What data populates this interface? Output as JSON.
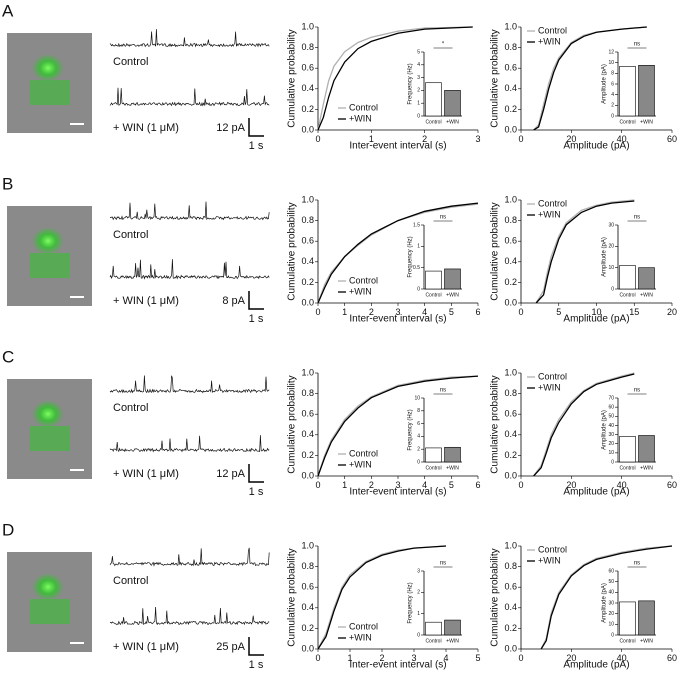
{
  "panels": [
    {
      "label": "A",
      "trace_labels": [
        "Control",
        "+ WIN (1 μM)"
      ],
      "scale_y": "12 pA",
      "scale_x": "1 s"
    },
    {
      "label": "B",
      "trace_labels": [
        "Control",
        "+ WIN (1 μM)"
      ],
      "scale_y": "8 pA",
      "scale_x": "1 s"
    },
    {
      "label": "C",
      "trace_labels": [
        "Control",
        "+ WIN (1 μM)"
      ],
      "scale_y": "12 pA",
      "scale_x": "1 s"
    },
    {
      "label": "D",
      "trace_labels": [
        "Control",
        "+ WIN (1 μM)"
      ],
      "scale_y": "25 pA",
      "scale_x": "1 s"
    }
  ],
  "chart_data": [
    {
      "type": "line",
      "ylabel": "Cumulative probability",
      "xlabel": "Inter-event  interval (s)",
      "legend": "lower-left",
      "xlim": [
        0,
        3
      ],
      "xticks": [
        0,
        1,
        2,
        3
      ],
      "ylim": [
        0,
        1
      ],
      "yticks": [
        {
          "value": 0,
          "label": "0.0"
        },
        0.2,
        0.4,
        0.6,
        0.8,
        {
          "value": 1,
          "label": "1.0"
        }
      ],
      "x": [
        0,
        0.1,
        0.2,
        0.3,
        0.5,
        0.75,
        1,
        1.5,
        2,
        2.9
      ],
      "series": [
        {
          "name": "Control",
          "color": "#b0b0b0",
          "values": [
            0,
            0.25,
            0.48,
            0.62,
            0.76,
            0.85,
            0.9,
            0.96,
            0.99,
            1
          ]
        },
        {
          "name": "+WIN",
          "color": "#000000",
          "values": [
            0,
            0.12,
            0.32,
            0.48,
            0.66,
            0.79,
            0.86,
            0.94,
            0.98,
            1
          ]
        }
      ],
      "inset": {
        "type": "bar",
        "ylabel": "Frequency (Hz)",
        "categories": [
          "Control",
          "+WIN"
        ],
        "values": [
          2.6,
          2.0
        ],
        "colors": [
          "#ffffff",
          "#888888"
        ],
        "ylim": [
          0,
          5
        ],
        "yticks": [
          0,
          1,
          2,
          3,
          4,
          5
        ],
        "annotation": "*"
      }
    },
    {
      "type": "line",
      "ylabel": "Cumulative probability",
      "xlabel": "Amplitude  (pA)",
      "legend": "upper-left",
      "xlim": [
        0,
        60
      ],
      "xticks": [
        0,
        20,
        40,
        60
      ],
      "ylim": [
        0,
        1
      ],
      "yticks": [
        {
          "value": 0,
          "label": "0.0"
        },
        0.2,
        0.4,
        0.6,
        0.8,
        {
          "value": 1,
          "label": "1.0"
        }
      ],
      "x": [
        5,
        7,
        9,
        11,
        13,
        15,
        20,
        25,
        30,
        40,
        50
      ],
      "series": [
        {
          "name": "Control",
          "color": "#b0b0b0",
          "values": [
            0,
            0.05,
            0.25,
            0.45,
            0.6,
            0.7,
            0.85,
            0.92,
            0.95,
            0.98,
            1
          ]
        },
        {
          "name": "+WIN",
          "color": "#000000",
          "values": [
            0,
            0.03,
            0.2,
            0.4,
            0.56,
            0.68,
            0.84,
            0.91,
            0.95,
            0.98,
            1
          ]
        }
      ],
      "inset": {
        "type": "bar",
        "ylabel": "Amplitude (pA)",
        "categories": [
          "Control",
          "+WIN"
        ],
        "values": [
          9.3,
          9.5
        ],
        "colors": [
          "#ffffff",
          "#888888"
        ],
        "ylim": [
          0,
          12
        ],
        "yticks": [
          0,
          2,
          4,
          6,
          8,
          10,
          12
        ],
        "annotation": "ns"
      }
    },
    {
      "type": "line",
      "ylabel": "Cumulative probability",
      "xlabel": "Inter-event  interval (s)",
      "legend": "lower-left",
      "xlim": [
        0,
        6
      ],
      "xticks": [
        0,
        1,
        2,
        3,
        4,
        5,
        6
      ],
      "ylim": [
        0,
        1
      ],
      "yticks": [
        {
          "value": 0,
          "label": "0.0"
        },
        0.2,
        0.4,
        0.6,
        0.8,
        {
          "value": 1,
          "label": "1.0"
        }
      ],
      "x": [
        0,
        0.25,
        0.5,
        1,
        1.5,
        2,
        3,
        4,
        5,
        6
      ],
      "series": [
        {
          "name": "Control",
          "color": "#b0b0b0",
          "values": [
            0,
            0.18,
            0.3,
            0.45,
            0.56,
            0.66,
            0.8,
            0.88,
            0.93,
            0.96
          ]
        },
        {
          "name": "+WIN",
          "color": "#000000",
          "values": [
            0,
            0.15,
            0.28,
            0.45,
            0.57,
            0.67,
            0.8,
            0.89,
            0.94,
            0.97
          ]
        }
      ],
      "inset": {
        "type": "bar",
        "ylabel": "Frequency (Hz)",
        "categories": [
          "Control",
          "+WIN"
        ],
        "values": [
          0.42,
          0.47
        ],
        "colors": [
          "#ffffff",
          "#888888"
        ],
        "ylim": [
          0,
          1.5
        ],
        "yticks": [
          0,
          0.5,
          1,
          1.5
        ],
        "annotation": "ns"
      }
    },
    {
      "type": "line",
      "ylabel": "Cumulative probability",
      "xlabel": "Amplitude  (pA)",
      "legend": "upper-left",
      "xlim": [
        0,
        20
      ],
      "xticks": [
        0,
        5,
        10,
        15,
        20
      ],
      "ylim": [
        0,
        1
      ],
      "yticks": [
        {
          "value": 0,
          "label": "0.0"
        },
        0.2,
        0.4,
        0.6,
        0.8,
        {
          "value": 1,
          "label": "1.0"
        }
      ],
      "x": [
        2,
        3,
        3.5,
        4,
        5,
        6,
        8,
        10,
        12,
        15
      ],
      "series": [
        {
          "name": "Control",
          "color": "#b0b0b0",
          "values": [
            0,
            0.12,
            0.3,
            0.45,
            0.65,
            0.78,
            0.9,
            0.95,
            0.98,
            1
          ]
        },
        {
          "name": "+WIN",
          "color": "#000000",
          "values": [
            0,
            0.08,
            0.25,
            0.4,
            0.62,
            0.76,
            0.88,
            0.94,
            0.97,
            0.99
          ]
        }
      ],
      "inset": {
        "type": "bar",
        "ylabel": "Amplitude (pA)",
        "categories": [
          "Control",
          "+WIN"
        ],
        "values": [
          11,
          10
        ],
        "colors": [
          "#ffffff",
          "#888888"
        ],
        "ylim": [
          0,
          30
        ],
        "yticks": [
          0,
          10,
          20,
          30
        ],
        "annotation": "ns"
      }
    },
    {
      "type": "line",
      "ylabel": "Cumulative probability",
      "xlabel": "Inter-event interval (s)",
      "legend": "lower-left",
      "xlim": [
        0,
        6
      ],
      "xticks": [
        0,
        1,
        2,
        3,
        4,
        5,
        6
      ],
      "ylim": [
        0,
        1
      ],
      "yticks": [
        {
          "value": 0,
          "label": "0.0"
        },
        0.2,
        0.4,
        0.6,
        0.8,
        {
          "value": 1,
          "label": "1.0"
        }
      ],
      "x": [
        0,
        0.25,
        0.5,
        1,
        1.5,
        2,
        3,
        4,
        5,
        6
      ],
      "series": [
        {
          "name": "Control",
          "color": "#b0b0b0",
          "values": [
            0,
            0.2,
            0.35,
            0.55,
            0.68,
            0.77,
            0.88,
            0.93,
            0.96,
            0.97
          ]
        },
        {
          "name": "+WIN",
          "color": "#000000",
          "values": [
            0,
            0.18,
            0.33,
            0.53,
            0.66,
            0.76,
            0.87,
            0.92,
            0.95,
            0.97
          ]
        }
      ],
      "inset": {
        "type": "bar",
        "ylabel": "Frequency (Hz)",
        "categories": [
          "Control",
          "+WIN"
        ],
        "values": [
          2.2,
          2.3
        ],
        "colors": [
          "#ffffff",
          "#888888"
        ],
        "ylim": [
          0,
          10
        ],
        "yticks": [
          0,
          2,
          4,
          6,
          8,
          10
        ],
        "annotation": "ns"
      }
    },
    {
      "type": "line",
      "ylabel": "Cumulative probability",
      "xlabel": "Amplitude  (pA)",
      "legend": "upper-left",
      "xlim": [
        0,
        60
      ],
      "xticks": [
        0,
        20,
        40,
        60
      ],
      "ylim": [
        0,
        1
      ],
      "yticks": [
        {
          "value": 0,
          "label": "0.0"
        },
        0.2,
        0.4,
        0.6,
        0.8,
        {
          "value": 1,
          "label": "1.0"
        }
      ],
      "x": [
        5,
        8,
        10,
        12,
        15,
        20,
        25,
        30,
        40,
        45
      ],
      "series": [
        {
          "name": "Control",
          "color": "#b0b0b0",
          "values": [
            0,
            0.1,
            0.25,
            0.4,
            0.55,
            0.72,
            0.83,
            0.9,
            0.97,
            1
          ]
        },
        {
          "name": "+WIN",
          "color": "#000000",
          "values": [
            0,
            0.08,
            0.22,
            0.37,
            0.52,
            0.7,
            0.82,
            0.89,
            0.96,
            0.99
          ]
        }
      ],
      "inset": {
        "type": "bar",
        "ylabel": "Amplitude (pA)",
        "categories": [
          "Control",
          "+WIN"
        ],
        "values": [
          28,
          29
        ],
        "colors": [
          "#ffffff",
          "#888888"
        ],
        "ylim": [
          0,
          70
        ],
        "yticks": [
          0,
          10,
          20,
          30,
          40,
          50,
          60,
          70
        ],
        "annotation": "ns"
      }
    },
    {
      "type": "line",
      "ylabel": "Cumulative probability",
      "xlabel": "Inter-event  interval (s)",
      "legend": "lower-left",
      "xlim": [
        0,
        5
      ],
      "xticks": [
        0,
        1,
        2,
        3,
        4,
        5
      ],
      "ylim": [
        0,
        1
      ],
      "yticks": [
        {
          "value": 0,
          "label": "0.0"
        },
        0.2,
        0.4,
        0.6,
        0.8,
        {
          "value": 1,
          "label": "1.0"
        }
      ],
      "x": [
        0,
        0.25,
        0.5,
        0.75,
        1,
        1.5,
        2,
        2.5,
        3,
        4
      ],
      "series": [
        {
          "name": "Control",
          "color": "#b0b0b0",
          "values": [
            0,
            0.15,
            0.4,
            0.6,
            0.72,
            0.85,
            0.92,
            0.96,
            0.98,
            1
          ]
        },
        {
          "name": "+WIN",
          "color": "#000000",
          "values": [
            0,
            0.12,
            0.37,
            0.58,
            0.7,
            0.84,
            0.91,
            0.95,
            0.98,
            1
          ]
        }
      ],
      "inset": {
        "type": "bar",
        "ylabel": "Frequency (Hz)",
        "categories": [
          "Control",
          "+WIN"
        ],
        "values": [
          0.6,
          0.7
        ],
        "colors": [
          "#ffffff",
          "#888888"
        ],
        "ylim": [
          0,
          3
        ],
        "yticks": [
          0,
          1,
          2,
          3
        ],
        "annotation": "ns"
      }
    },
    {
      "type": "line",
      "ylabel": "Cumulative probability",
      "xlabel": "Amplitude  (pA)",
      "legend": "upper-left",
      "xlim": [
        0,
        60
      ],
      "xticks": [
        0,
        20,
        40,
        60
      ],
      "ylim": [
        0,
        1
      ],
      "yticks": [
        {
          "value": 0,
          "label": "0.0"
        },
        0.2,
        0.4,
        0.6,
        0.8,
        {
          "value": 1,
          "label": "1.0"
        }
      ],
      "x": [
        8,
        10,
        12,
        15,
        20,
        25,
        30,
        40,
        50,
        60
      ],
      "series": [
        {
          "name": "Control",
          "color": "#b0b0b0",
          "values": [
            0,
            0.1,
            0.35,
            0.55,
            0.72,
            0.82,
            0.88,
            0.94,
            0.98,
            1
          ]
        },
        {
          "name": "+WIN",
          "color": "#000000",
          "values": [
            0,
            0.08,
            0.32,
            0.53,
            0.71,
            0.81,
            0.87,
            0.93,
            0.97,
            1
          ]
        }
      ],
      "inset": {
        "type": "bar",
        "ylabel": "Amplitude (pA)",
        "categories": [
          "Control",
          "+WIN"
        ],
        "values": [
          31,
          32
        ],
        "colors": [
          "#ffffff",
          "#888888"
        ],
        "ylim": [
          0,
          60
        ],
        "yticks": [
          0,
          10,
          20,
          30,
          40,
          50,
          60
        ],
        "annotation": "ns"
      }
    }
  ]
}
